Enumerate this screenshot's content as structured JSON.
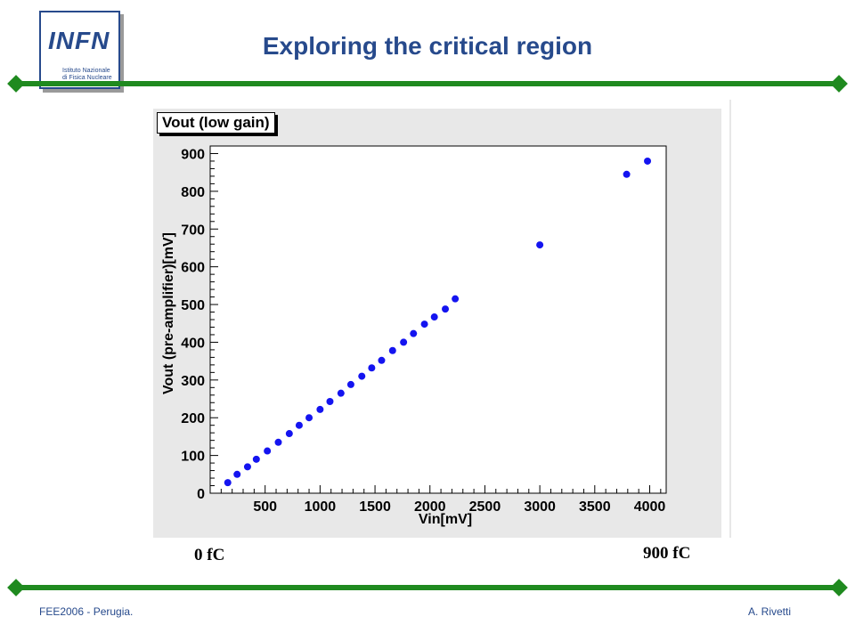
{
  "header": {
    "title": "Exploring the critical region",
    "logo_word": "INFN",
    "logo_sub1": "Istituto Nazionale",
    "logo_sub2": "di Fisica Nucleare"
  },
  "annotations": {
    "left": "0 fC",
    "right": "900 fC"
  },
  "footer": {
    "left": "FEE2006 - Perugia.",
    "right": "A. Rivetti"
  },
  "colors": {
    "accent": "#274a8c",
    "bar": "#1f8a1f",
    "marker": "#1414f0",
    "plot_bg": "#e8e8e8"
  },
  "chart_data": {
    "type": "scatter",
    "title": "Vout (low gain)",
    "xlabel": "Vin[mV]",
    "ylabel": "Vout (pre-amplifier)[mV]",
    "xlim": [
      0,
      4150
    ],
    "ylim": [
      0,
      920
    ],
    "xticks": [
      500,
      1000,
      1500,
      2000,
      2500,
      3000,
      3500,
      4000
    ],
    "yticks": [
      0,
      100,
      200,
      300,
      400,
      500,
      600,
      700,
      800,
      900
    ],
    "grid": false,
    "legend": "none",
    "points": [
      {
        "x": 160,
        "y": 28
      },
      {
        "x": 245,
        "y": 50
      },
      {
        "x": 340,
        "y": 70
      },
      {
        "x": 420,
        "y": 90
      },
      {
        "x": 520,
        "y": 112
      },
      {
        "x": 620,
        "y": 135
      },
      {
        "x": 720,
        "y": 158
      },
      {
        "x": 810,
        "y": 180
      },
      {
        "x": 900,
        "y": 200
      },
      {
        "x": 1000,
        "y": 222
      },
      {
        "x": 1090,
        "y": 243
      },
      {
        "x": 1190,
        "y": 265
      },
      {
        "x": 1280,
        "y": 288
      },
      {
        "x": 1380,
        "y": 310
      },
      {
        "x": 1470,
        "y": 332
      },
      {
        "x": 1560,
        "y": 352
      },
      {
        "x": 1660,
        "y": 378
      },
      {
        "x": 1760,
        "y": 400
      },
      {
        "x": 1850,
        "y": 423
      },
      {
        "x": 1950,
        "y": 448
      },
      {
        "x": 2040,
        "y": 467
      },
      {
        "x": 2140,
        "y": 488
      },
      {
        "x": 2230,
        "y": 515
      },
      {
        "x": 3000,
        "y": 658
      },
      {
        "x": 3790,
        "y": 845
      },
      {
        "x": 3980,
        "y": 880
      }
    ]
  }
}
